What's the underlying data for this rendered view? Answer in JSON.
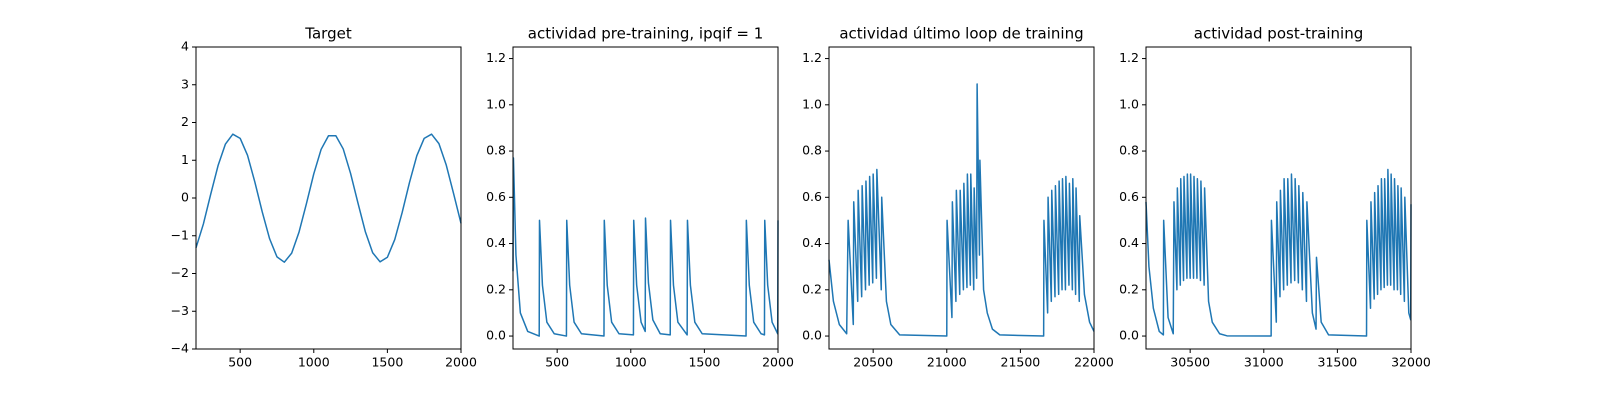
{
  "chart_data": [
    {
      "type": "line",
      "title": "Target",
      "color": "#1f77b4",
      "x": [
        200,
        250,
        300,
        350,
        400,
        450,
        500,
        550,
        600,
        650,
        700,
        750,
        800,
        850,
        900,
        950,
        1000,
        1050,
        1100,
        1150,
        1200,
        1250,
        1300,
        1350,
        1400,
        1450,
        1500,
        1550,
        1600,
        1650,
        1700,
        1750,
        1800,
        1850,
        1900,
        1950,
        2000
      ],
      "values": [
        -1.32,
        -0.69,
        0.1,
        0.86,
        1.43,
        1.69,
        1.58,
        1.13,
        0.42,
        -0.37,
        -1.08,
        -1.56,
        -1.7,
        -1.46,
        -0.9,
        -0.15,
        0.64,
        1.29,
        1.65,
        1.65,
        1.3,
        0.65,
        -0.13,
        -0.89,
        -1.45,
        -1.69,
        -1.57,
        -1.1,
        -0.39,
        0.41,
        1.12,
        1.58,
        1.69,
        1.44,
        0.87,
        0.11,
        -0.67
      ],
      "xlim": [
        200,
        2000
      ],
      "xticks": [
        500,
        1000,
        1500,
        2000
      ],
      "ylim": [
        -4,
        4
      ],
      "yticks": [
        {
          "value": -4,
          "label": "−4"
        },
        {
          "value": -3,
          "label": "−3"
        },
        {
          "value": -2,
          "label": "−2"
        },
        {
          "value": -1,
          "label": "−1"
        },
        0,
        1,
        2,
        3,
        4
      ]
    },
    {
      "type": "line",
      "title": "actividad pre-training, ipqif = 1",
      "color": "#1f77b4",
      "x": [
        200,
        203,
        220,
        250,
        300,
        378,
        380,
        400,
        430,
        480,
        563,
        565,
        585,
        615,
        665,
        818,
        820,
        840,
        870,
        920,
        1018,
        1020,
        1040,
        1070,
        1098,
        1100,
        1120,
        1150,
        1200,
        1268,
        1270,
        1290,
        1320,
        1383,
        1385,
        1405,
        1435,
        1485,
        1783,
        1785,
        1805,
        1835,
        1885,
        1908,
        1910,
        1930,
        1960,
        1998,
        2000
      ],
      "values": [
        0.28,
        0.77,
        0.35,
        0.1,
        0.02,
        0,
        0.5,
        0.22,
        0.06,
        0.01,
        0,
        0.5,
        0.22,
        0.06,
        0.01,
        0,
        0.5,
        0.22,
        0.06,
        0.01,
        0.005,
        0.5,
        0.22,
        0.06,
        0.02,
        0.51,
        0.23,
        0.07,
        0.01,
        0.005,
        0.5,
        0.22,
        0.06,
        0.005,
        0.5,
        0.22,
        0.06,
        0.01,
        0,
        0.5,
        0.22,
        0.06,
        0.01,
        0.005,
        0.5,
        0.22,
        0.06,
        0.01,
        0.5
      ],
      "xlim": [
        200,
        2000
      ],
      "xticks": [
        500,
        1000,
        1500,
        2000
      ],
      "ylim": [
        -0.056,
        1.25
      ],
      "yticks": [
        {
          "value": 0,
          "label": "0.0"
        },
        0.2,
        0.4,
        0.6,
        0.8,
        {
          "value": 1,
          "label": "1.0"
        },
        1.2
      ]
    },
    {
      "type": "line",
      "title": "actividad último loop de training",
      "color": "#1f77b4",
      "x": [
        20200,
        20230,
        20270,
        20320,
        20330,
        20365,
        20368,
        20395,
        20398,
        20422,
        20425,
        20448,
        20451,
        20473,
        20476,
        20497,
        20500,
        20522,
        20525,
        20555,
        20558,
        20590,
        20620,
        20680,
        21000,
        21002,
        21035,
        21038,
        21062,
        21065,
        21088,
        21091,
        21113,
        21116,
        21137,
        21140,
        21160,
        21163,
        21183,
        21186,
        21203,
        21206,
        21222,
        21225,
        21250,
        21275,
        21310,
        21360,
        21658,
        21660,
        21685,
        21688,
        21710,
        21713,
        21735,
        21738,
        21760,
        21763,
        21783,
        21786,
        21806,
        21809,
        21830,
        21833,
        21853,
        21856,
        21875,
        21878,
        21900,
        21903,
        21935,
        21970,
        22000
      ],
      "values": [
        0.33,
        0.15,
        0.05,
        0.01,
        0.5,
        0.05,
        0.58,
        0.15,
        0.63,
        0.17,
        0.65,
        0.2,
        0.67,
        0.22,
        0.69,
        0.23,
        0.7,
        0.25,
        0.72,
        0.2,
        0.6,
        0.15,
        0.05,
        0.005,
        0,
        0.5,
        0.08,
        0.58,
        0.15,
        0.63,
        0.18,
        0.63,
        0.2,
        0.66,
        0.21,
        0.7,
        0.22,
        0.7,
        0.2,
        0.64,
        0.25,
        1.09,
        0.35,
        0.76,
        0.2,
        0.1,
        0.03,
        0.005,
        0,
        0.5,
        0.1,
        0.6,
        0.15,
        0.63,
        0.17,
        0.65,
        0.18,
        0.67,
        0.2,
        0.68,
        0.2,
        0.69,
        0.22,
        0.66,
        0.2,
        0.68,
        0.18,
        0.64,
        0.15,
        0.52,
        0.18,
        0.06,
        0.02
      ],
      "xlim": [
        20200,
        22000
      ],
      "xticks": [
        20500,
        21000,
        21500,
        22000
      ],
      "ylim": [
        -0.056,
        1.25
      ],
      "yticks": [
        {
          "value": 0,
          "label": "0.0"
        },
        0.2,
        0.4,
        0.6,
        0.8,
        {
          "value": 1,
          "label": "1.0"
        },
        1.2
      ]
    },
    {
      "type": "line",
      "title": "actividad post-training",
      "color": "#1f77b4",
      "x": [
        30200,
        30220,
        30250,
        30290,
        30318,
        30320,
        30350,
        30385,
        30390,
        30410,
        30413,
        30433,
        30436,
        30455,
        30458,
        30478,
        30481,
        30500,
        30503,
        30523,
        30526,
        30546,
        30549,
        30570,
        30573,
        30595,
        30598,
        30625,
        30650,
        30700,
        30750,
        31050,
        31052,
        31085,
        31088,
        31110,
        31113,
        31135,
        31138,
        31160,
        31163,
        31185,
        31188,
        31210,
        31213,
        31235,
        31238,
        31262,
        31265,
        31290,
        31293,
        31330,
        31355,
        31358,
        31390,
        31440,
        31698,
        31700,
        31725,
        31728,
        31750,
        31753,
        31773,
        31776,
        31796,
        31799,
        31818,
        31821,
        31840,
        31843,
        31862,
        31865,
        31885,
        31888,
        31908,
        31911,
        31930,
        31933,
        31955,
        31958,
        31985,
        31998,
        32000
      ],
      "values": [
        0.58,
        0.3,
        0.12,
        0.02,
        0.005,
        0.5,
        0.08,
        0.01,
        0.58,
        0.2,
        0.64,
        0.22,
        0.68,
        0.24,
        0.69,
        0.25,
        0.7,
        0.25,
        0.7,
        0.25,
        0.69,
        0.25,
        0.68,
        0.24,
        0.67,
        0.22,
        0.64,
        0.15,
        0.06,
        0.01,
        0.001,
        0,
        0.5,
        0.06,
        0.58,
        0.17,
        0.63,
        0.2,
        0.68,
        0.22,
        0.68,
        0.23,
        0.7,
        0.24,
        0.68,
        0.23,
        0.65,
        0.2,
        0.62,
        0.15,
        0.58,
        0.1,
        0.03,
        0.34,
        0.06,
        0.005,
        0,
        0.5,
        0.12,
        0.58,
        0.16,
        0.62,
        0.18,
        0.65,
        0.2,
        0.68,
        0.21,
        0.68,
        0.22,
        0.72,
        0.22,
        0.7,
        0.2,
        0.68,
        0.2,
        0.65,
        0.18,
        0.64,
        0.15,
        0.6,
        0.1,
        0.07,
        0.57
      ],
      "xlim": [
        30200,
        32000
      ],
      "xticks": [
        30500,
        31000,
        31500,
        32000
      ],
      "ylim": [
        -0.056,
        1.25
      ],
      "yticks": [
        {
          "value": 0,
          "label": "0.0"
        },
        0.2,
        0.4,
        0.6,
        0.8,
        {
          "value": 1,
          "label": "1.0"
        },
        1.2
      ]
    }
  ]
}
